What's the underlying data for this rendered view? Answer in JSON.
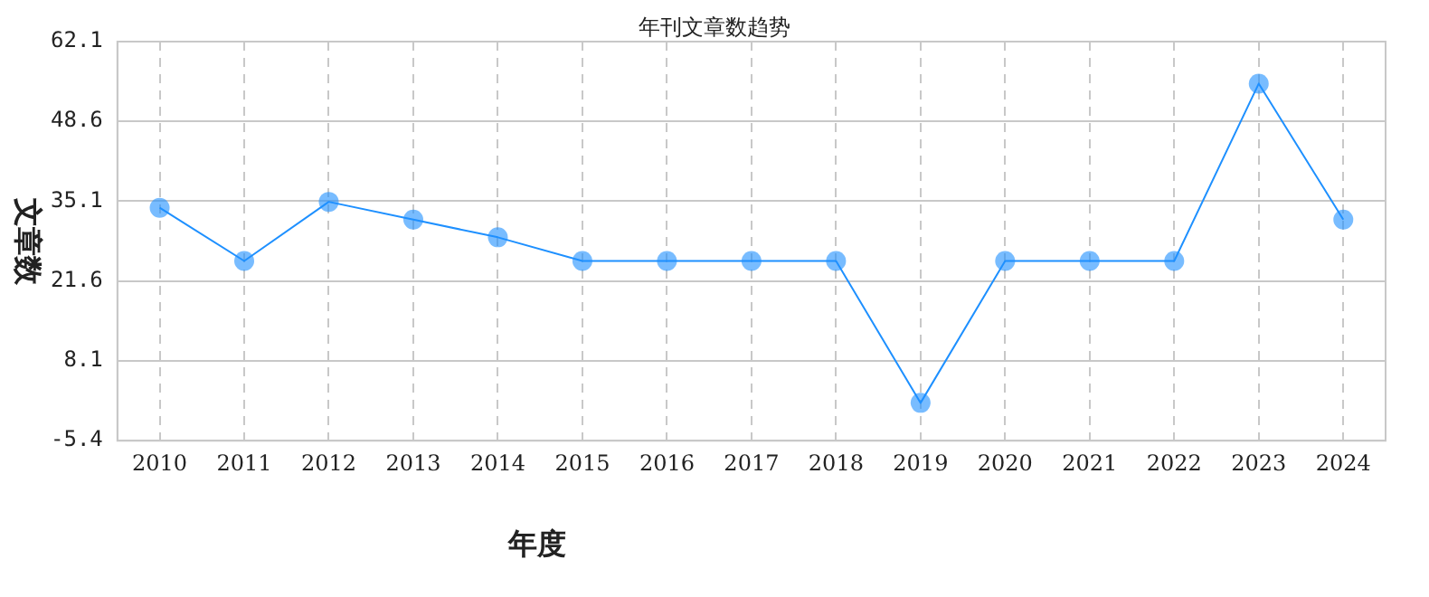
{
  "chart_data": {
    "type": "line",
    "title": "年刊文章数趋势",
    "xlabel": "年度",
    "ylabel": "文章数",
    "categories": [
      "2010",
      "2011",
      "2012",
      "2013",
      "2014",
      "2015",
      "2016",
      "2017",
      "2018",
      "2019",
      "2020",
      "2021",
      "2022",
      "2023",
      "2024"
    ],
    "series": [
      {
        "color": "#1e90ff",
        "values": [
          34,
          25,
          35,
          32,
          29,
          25,
          25,
          25,
          25,
          1,
          25,
          25,
          25,
          55,
          32
        ]
      }
    ],
    "ylim": [
      -5.4,
      62.1
    ],
    "yticks": [
      -5.4,
      8.1,
      21.6,
      35.1,
      48.6,
      62.1
    ],
    "grid": true,
    "legend": false,
    "marker": "circle",
    "line_style": "solid"
  }
}
